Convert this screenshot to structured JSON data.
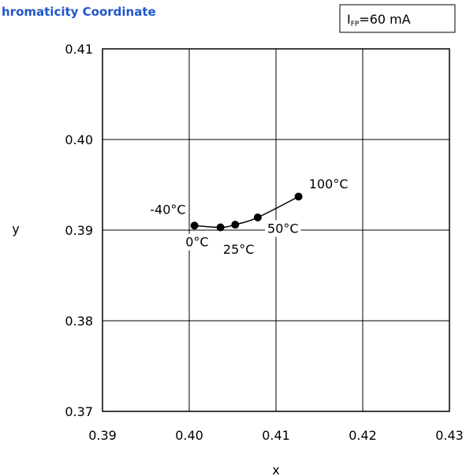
{
  "chart_data": {
    "type": "line",
    "title": "hromaticity Coordinate",
    "condition": {
      "symbol": "I",
      "subscript": "FP",
      "value": "=60 mA"
    },
    "xlabel": "x",
    "ylabel": "y",
    "xlim": [
      0.39,
      0.43
    ],
    "ylim": [
      0.37,
      0.41
    ],
    "xticks": [
      {
        "value": 0.39,
        "label": "0.39"
      },
      {
        "value": 0.4,
        "label": "0.40"
      },
      {
        "value": 0.41,
        "label": "0.41"
      },
      {
        "value": 0.42,
        "label": "0.42"
      },
      {
        "value": 0.43,
        "label": "0.43"
      }
    ],
    "yticks": [
      {
        "value": 0.37,
        "label": "0.37"
      },
      {
        "value": 0.38,
        "label": "0.38"
      },
      {
        "value": 0.39,
        "label": "0.39"
      },
      {
        "value": 0.4,
        "label": "0.40"
      },
      {
        "value": 0.41,
        "label": "0.41"
      }
    ],
    "grid": true,
    "colors": {
      "title": "#1f57c8",
      "line": "#000000",
      "grid": "#000000"
    },
    "series": [
      {
        "points": [
          {
            "x": 0.4006,
            "y": 0.3905
          },
          {
            "x": 0.4036,
            "y": 0.3903
          },
          {
            "x": 0.4053,
            "y": 0.3906
          },
          {
            "x": 0.4079,
            "y": 0.3914
          },
          {
            "x": 0.4126,
            "y": 0.3937
          }
        ]
      }
    ],
    "annotations": [
      {
        "text": "-40°C",
        "x": 0.3996,
        "y": 0.3918,
        "anchor": "end"
      },
      {
        "text": "0°C",
        "x": 0.4009,
        "y": 0.3882,
        "anchor": "middle"
      },
      {
        "text": "25°C",
        "x": 0.4057,
        "y": 0.3874,
        "anchor": "middle"
      },
      {
        "text": "50°C",
        "x": 0.4108,
        "y": 0.3897,
        "anchor": "middle"
      },
      {
        "text": "100°C",
        "x": 0.4138,
        "y": 0.3946,
        "anchor": "start"
      }
    ]
  }
}
